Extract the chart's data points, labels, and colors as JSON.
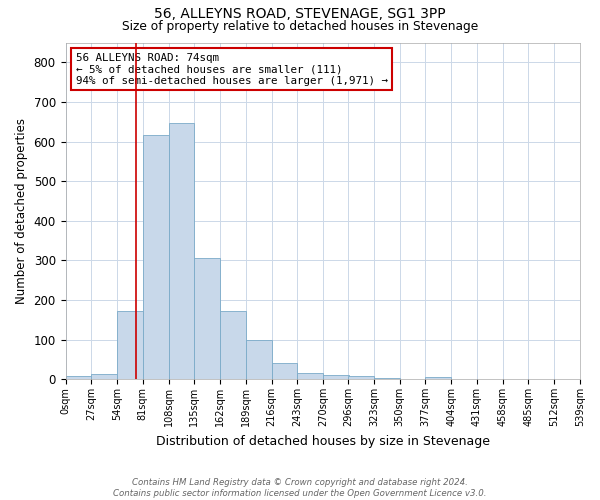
{
  "title1": "56, ALLEYNS ROAD, STEVENAGE, SG1 3PP",
  "title2": "Size of property relative to detached houses in Stevenage",
  "xlabel": "Distribution of detached houses by size in Stevenage",
  "ylabel": "Number of detached properties",
  "bin_edges": [
    0,
    27,
    54,
    81,
    108,
    135,
    162,
    189,
    216,
    243,
    270,
    296,
    323,
    350,
    377,
    404,
    431,
    458,
    485,
    512,
    539
  ],
  "bar_heights": [
    8,
    13,
    172,
    617,
    648,
    305,
    173,
    98,
    41,
    16,
    11,
    8,
    2,
    0,
    6,
    0,
    0,
    0,
    0,
    0
  ],
  "bar_color": "#c8d8ea",
  "bar_edge_color": "#7aaac8",
  "property_line_x": 74,
  "property_line_color": "#cc0000",
  "annotation_text": "56 ALLEYNS ROAD: 74sqm\n← 5% of detached houses are smaller (111)\n94% of semi-detached houses are larger (1,971) →",
  "annotation_box_color": "#cc0000",
  "ylim": [
    0,
    850
  ],
  "yticks": [
    0,
    100,
    200,
    300,
    400,
    500,
    600,
    700,
    800
  ],
  "tick_labels": [
    "0sqm",
    "27sqm",
    "54sqm",
    "81sqm",
    "108sqm",
    "135sqm",
    "162sqm",
    "189sqm",
    "216sqm",
    "243sqm",
    "270sqm",
    "296sqm",
    "323sqm",
    "350sqm",
    "377sqm",
    "404sqm",
    "431sqm",
    "458sqm",
    "485sqm",
    "512sqm",
    "539sqm"
  ],
  "footnote": "Contains HM Land Registry data © Crown copyright and database right 2024.\nContains public sector information licensed under the Open Government Licence v3.0.",
  "background_color": "#ffffff",
  "grid_color": "#ccd8e8"
}
